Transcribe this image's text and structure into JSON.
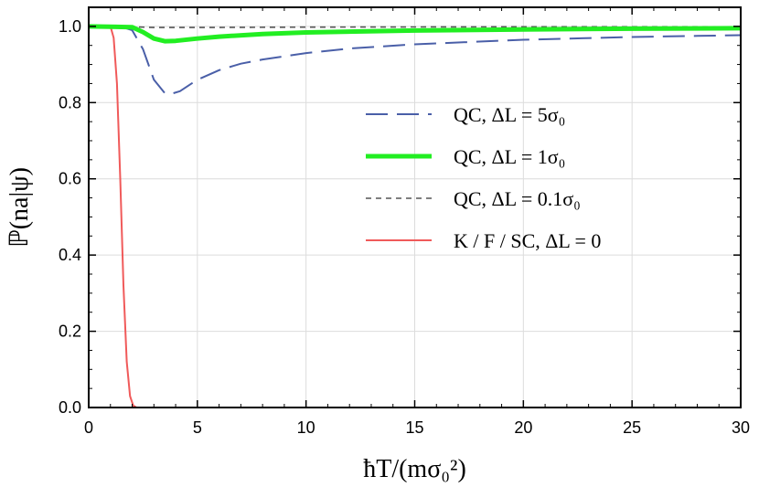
{
  "chart_data": {
    "type": "line",
    "xlabel": "ħT/(mσ₀²)",
    "ylabel": "ℙ(na|ψ)",
    "xlim": [
      0,
      30
    ],
    "ylim": [
      0,
      1.05
    ],
    "xticks": [
      0,
      5,
      10,
      15,
      20,
      25,
      30
    ],
    "xtick_labels": [
      "0",
      "5",
      "10",
      "15",
      "20",
      "25",
      "30"
    ],
    "yticks": [
      0.0,
      0.2,
      0.4,
      0.6,
      0.8,
      1.0
    ],
    "ytick_labels": [
      "0.0",
      "0.2",
      "0.4",
      "0.6",
      "0.8",
      "1.0"
    ],
    "grid": true,
    "legend_position": "right",
    "series": [
      {
        "name": "QC, ΔL = 5σ₀",
        "color": "#4a5fa8",
        "style": "long-dash",
        "x": [
          0,
          1.5,
          2.0,
          2.5,
          3.0,
          3.5,
          3.8,
          4.2,
          5,
          6,
          7,
          8,
          10,
          12,
          15,
          20,
          25,
          30
        ],
        "y": [
          1.0,
          0.999,
          0.99,
          0.94,
          0.86,
          0.825,
          0.823,
          0.83,
          0.86,
          0.885,
          0.902,
          0.913,
          0.93,
          0.942,
          0.953,
          0.965,
          0.972,
          0.977
        ]
      },
      {
        "name": "QC, ΔL = 1σ₀",
        "color": "#22ee22",
        "style": "solid-thick",
        "x": [
          0,
          2.0,
          2.5,
          3.0,
          3.5,
          4.0,
          5,
          6,
          8,
          10,
          15,
          20,
          25,
          30
        ],
        "y": [
          1.0,
          0.998,
          0.985,
          0.968,
          0.961,
          0.962,
          0.968,
          0.973,
          0.98,
          0.984,
          0.989,
          0.992,
          0.994,
          0.995
        ]
      },
      {
        "name": "QC, ΔL = 0.1σ₀",
        "color": "#555555",
        "style": "short-dash",
        "x": [
          0,
          2.0,
          3.0,
          5,
          10,
          20,
          30
        ],
        "y": [
          1.0,
          0.999,
          0.997,
          0.997,
          0.998,
          0.999,
          0.999
        ]
      },
      {
        "name": "K / F / SC, ΔL = 0",
        "color": "#f05a5a",
        "style": "solid",
        "x": [
          0,
          1.0,
          1.15,
          1.3,
          1.45,
          1.6,
          1.75,
          1.9,
          2.05,
          2.2,
          30
        ],
        "y": [
          1.0,
          1.0,
          0.97,
          0.85,
          0.6,
          0.32,
          0.12,
          0.03,
          0.005,
          0.0,
          0.0
        ]
      }
    ]
  }
}
